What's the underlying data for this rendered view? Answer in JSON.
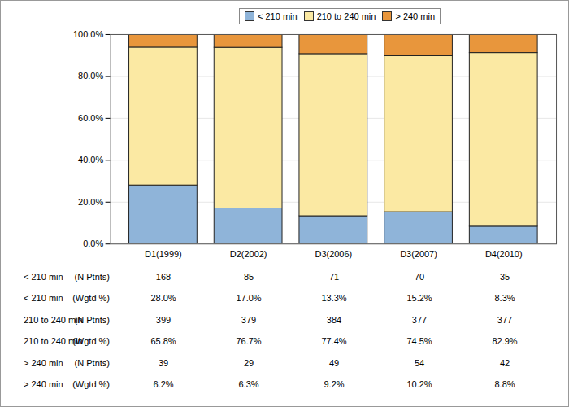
{
  "chart_data": {
    "type": "bar",
    "stacked": true,
    "categories": [
      "D1(1999)",
      "D2(2002)",
      "D3(2006)",
      "D3(2007)",
      "D4(2010)"
    ],
    "series": [
      {
        "name": "< 210 min",
        "color": "#8fb4d9",
        "values": [
          28.0,
          17.0,
          13.3,
          15.2,
          8.3
        ],
        "value_labels": [
          "28.0%",
          "17.0%",
          "13.3%",
          "15.2%",
          "8.3%"
        ],
        "n_ptnts": [
          168,
          85,
          71,
          70,
          35
        ]
      },
      {
        "name": "210 to 240 min",
        "color": "#fbe9a3",
        "values": [
          65.8,
          76.7,
          77.4,
          74.5,
          82.9
        ],
        "value_labels": [
          "65.8%",
          "76.7%",
          "77.4%",
          "74.5%",
          "82.9%"
        ],
        "n_ptnts": [
          399,
          379,
          384,
          377,
          377
        ]
      },
      {
        "name": "> 240 min",
        "color": "#e8963c",
        "values": [
          6.2,
          6.3,
          9.2,
          10.2,
          8.8
        ],
        "value_labels": [
          "6.2%",
          "6.3%",
          "9.2%",
          "10.2%",
          "8.8%"
        ],
        "n_ptnts": [
          39,
          29,
          49,
          54,
          42
        ]
      }
    ],
    "table_rows": [
      "(N Ptnts)",
      "(Wgtd %)"
    ],
    "ylim": [
      0,
      100
    ],
    "yticks": [
      {
        "value": 0,
        "label": "0.0%"
      },
      {
        "value": 20,
        "label": "20.0%"
      },
      {
        "value": 40,
        "label": "40.0%"
      },
      {
        "value": 60,
        "label": "60.0%"
      },
      {
        "value": 80,
        "label": "80.0%"
      },
      {
        "value": 100,
        "label": "100.0%"
      }
    ],
    "grid": true,
    "legend": "top"
  }
}
